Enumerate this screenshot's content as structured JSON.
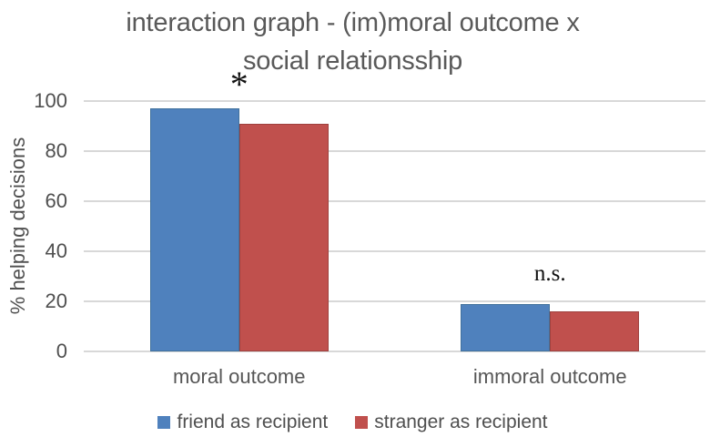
{
  "title": {
    "line1": "interaction graph - (im)moral outcome x",
    "line2": "social relationsship"
  },
  "chart_data": {
    "type": "bar",
    "title": "interaction graph - (im)moral outcome x social relationsship",
    "xlabel": "",
    "ylabel": "% helping decisions",
    "ylim": [
      0,
      100
    ],
    "yticks": [
      0,
      20,
      40,
      60,
      80,
      100
    ],
    "grid": true,
    "legend_position": "bottom",
    "categories": [
      "moral outcome",
      "immoral outcome"
    ],
    "series": [
      {
        "name": "friend as recipient",
        "color": "#4f81bd",
        "border_color": "#41719c",
        "values": [
          97,
          19
        ]
      },
      {
        "name": "stranger as recipient",
        "color": "#c0504d",
        "border_color": "#9e413e",
        "values": [
          91,
          16
        ]
      }
    ],
    "annotations": [
      {
        "category": "moral outcome",
        "text": "*"
      },
      {
        "category": "immoral outcome",
        "text": "n.s."
      }
    ]
  },
  "colors": {
    "title_text": "#595959",
    "axis_text": "#4f4f4f",
    "gridline": "#d8d8d8",
    "background": "#ffffff"
  }
}
